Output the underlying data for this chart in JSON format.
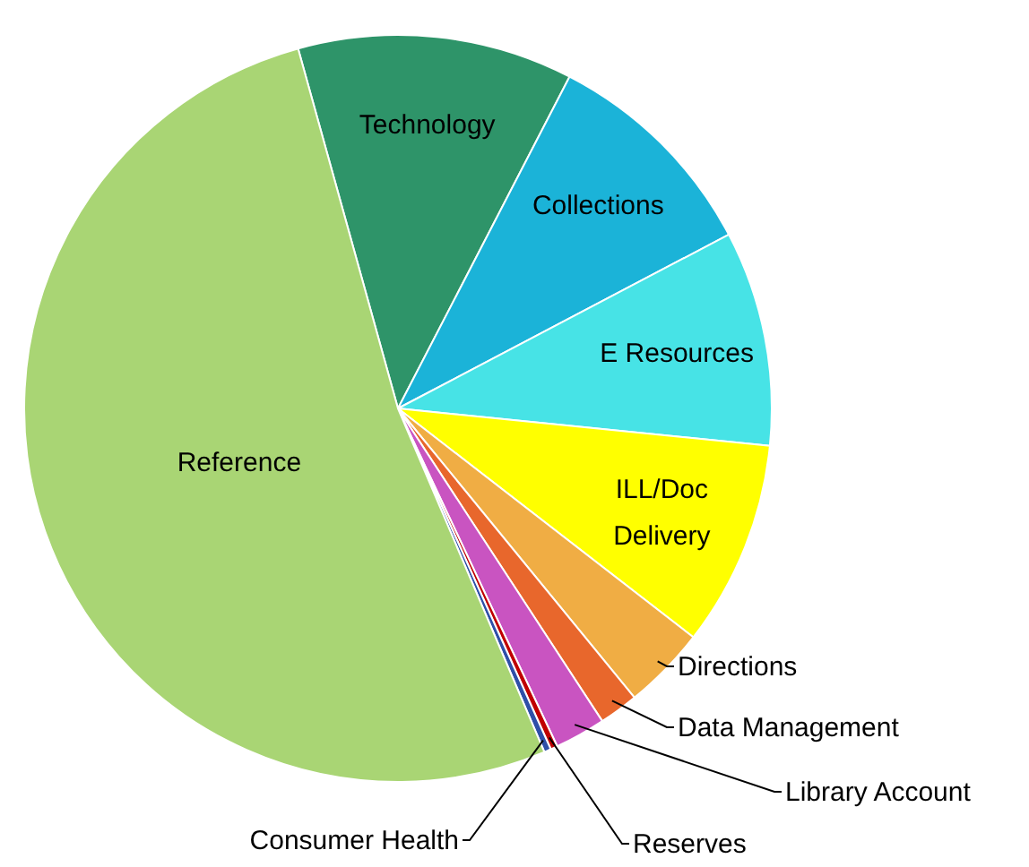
{
  "chart_data": {
    "type": "pie",
    "categories": [
      "Technology",
      "Collections",
      "E Resources",
      "ILL/Doc Delivery",
      "Directions",
      "Data Management",
      "Library Account",
      "Reserves",
      "Consumer Health",
      "Reference"
    ],
    "values": [
      11.9,
      9.7,
      9.3,
      8.9,
      3.6,
      1.7,
      2.2,
      0.3,
      0.3,
      52.1
    ],
    "colors": [
      "#2e9469",
      "#1bb3d8",
      "#47e3e6",
      "#ffff00",
      "#f0ad44",
      "#e8672c",
      "#c954c1",
      "#c00000",
      "#2e4fa8",
      "#a9d574"
    ],
    "legend": false
  }
}
